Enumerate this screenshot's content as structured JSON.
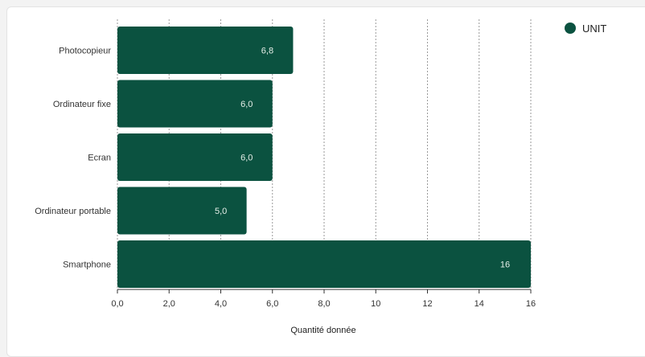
{
  "chart_data": {
    "type": "bar",
    "orientation": "horizontal",
    "categories": [
      "Photocopieur",
      "Ordinateur fixe",
      "Ecran",
      "Ordinateur portable",
      "Smartphone"
    ],
    "series": [
      {
        "name": "UNIT",
        "values": [
          6.8,
          6.0,
          6.0,
          5.0,
          16
        ],
        "value_labels": [
          "6,8",
          "6,0",
          "6,0",
          "5,0",
          "16"
        ]
      }
    ],
    "xlim": [
      0,
      16
    ],
    "xticks": [
      0,
      2,
      4,
      6,
      8,
      10,
      12,
      14,
      16
    ],
    "xtick_labels": [
      "0,0",
      "2,0",
      "4,0",
      "6,0",
      "8,0",
      "10",
      "12",
      "14",
      "16"
    ],
    "xlabel": "Quantité donnée",
    "ylabel": "",
    "grid": "vertical-dashed",
    "legend": "top-right",
    "colors": {
      "bar": "#0b5240",
      "grid": "#9a9a9a",
      "axis": "#333333"
    }
  }
}
